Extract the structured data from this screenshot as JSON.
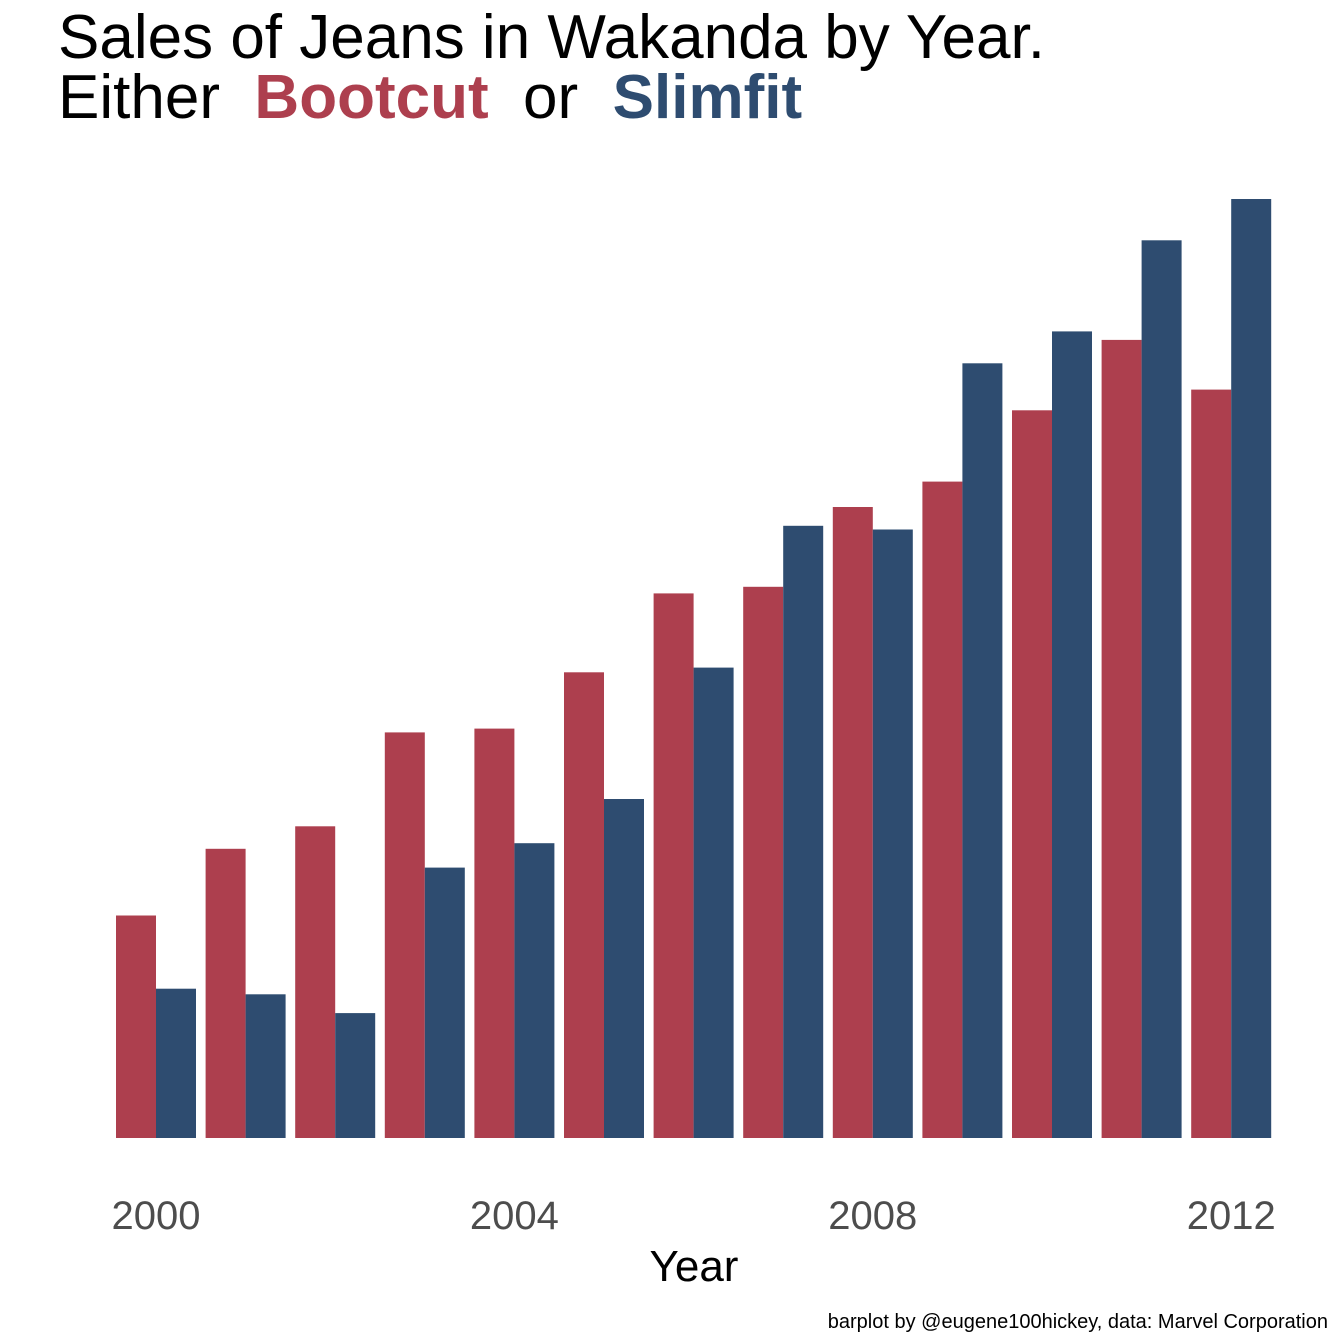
{
  "chart_data": {
    "type": "bar",
    "title": {
      "line1": "Sales of Jeans in Wakanda by Year.",
      "line2_prefix": "Either",
      "line2_series1": "Bootcut",
      "line2_connector": "or",
      "line2_series2": "Slimfit"
    },
    "xlabel": "Year",
    "ylabel": "",
    "x": [
      2000,
      2001,
      2002,
      2003,
      2004,
      2005,
      2006,
      2007,
      2008,
      2009,
      2010,
      2011,
      2012
    ],
    "xticks": [
      "2000",
      "2004",
      "2008",
      "2012"
    ],
    "ylim": [
      0,
      100
    ],
    "grid": false,
    "legend": "none (series named in title)",
    "series": [
      {
        "name": "Bootcut",
        "color": "#AD3F4E",
        "values": [
          23.7,
          30.8,
          33.2,
          43.2,
          43.6,
          49.6,
          58.0,
          58.7,
          67.2,
          69.9,
          77.5,
          85.0,
          79.7
        ]
      },
      {
        "name": "Slimfit",
        "color": "#2E4C70",
        "values": [
          15.9,
          15.3,
          13.3,
          28.8,
          31.4,
          36.1,
          50.1,
          65.2,
          64.8,
          82.5,
          85.9,
          95.6,
          100.0
        ]
      }
    ],
    "caption": "barplot by @eugene100hickey, data: Marvel Corporation"
  }
}
